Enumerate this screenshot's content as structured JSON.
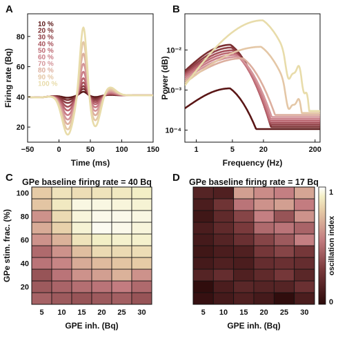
{
  "panels": {
    "a": "A",
    "b": "B",
    "c": "C",
    "d": "D"
  },
  "chart_data": [
    {
      "type": "line",
      "panel": "A",
      "xlabel": "Time (ms)",
      "ylabel": "Firing rate (Bq)",
      "xlim": [
        -50,
        150
      ],
      "ylim": [
        10,
        95
      ],
      "xticks": [
        "−50",
        "0",
        "50",
        "100",
        "150"
      ],
      "yticks": [
        "20",
        "40",
        "60",
        "80"
      ],
      "legend_placement": "top-left",
      "grid": false,
      "series": [
        {
          "name": "10 %",
          "color": "#5a1616",
          "dip": 39.5,
          "peak": 43.5
        },
        {
          "name": "20 %",
          "color": "#7a2e30",
          "dip": 38.0,
          "peak": 45.5
        },
        {
          "name": "30 %",
          "color": "#8f3f45",
          "dip": 36.0,
          "peak": 47.5
        },
        {
          "name": "40 %",
          "color": "#a65059",
          "dip": 33.5,
          "peak": 50.0
        },
        {
          "name": "50 %",
          "color": "#bb6670",
          "dip": 31.0,
          "peak": 53.0
        },
        {
          "name": "60 %",
          "color": "#c97c86",
          "dip": 28.0,
          "peak": 57.5
        },
        {
          "name": "70 %",
          "color": "#d4959a",
          "dip": 25.0,
          "peak": 63.0
        },
        {
          "name": "80 %",
          "color": "#dcae9e",
          "dip": 22.0,
          "peak": 70.0
        },
        {
          "name": "90 %",
          "color": "#e4c7a6",
          "dip": 18.5,
          "peak": 78.0
        },
        {
          "name": "100 %",
          "color": "#e8dcaa",
          "dip": 15.0,
          "peak": 88.0
        }
      ]
    },
    {
      "type": "line",
      "panel": "B",
      "xlabel": "Frequency (Hz)",
      "ylabel": "Power (dB)",
      "xscale": "log",
      "yscale": "log",
      "xlim": [
        0.6,
        250
      ],
      "ylim": [
        5e-05,
        0.08
      ],
      "xticks": [
        "1",
        "5",
        "20",
        "200"
      ],
      "yticks": [
        "10⁻⁴",
        "10⁻³",
        "10⁻²"
      ],
      "grid": false,
      "series": [
        {
          "name": "10 %",
          "peak_f": 4.5,
          "peak_p": 0.0011,
          "start_p": 0.00035
        },
        {
          "name": "20 %",
          "peak_f": 4.6,
          "peak_p": 0.0135,
          "start_p": 0.003
        },
        {
          "name": "30 %",
          "peak_f": 4.8,
          "peak_p": 0.0115,
          "start_p": 0.0027
        },
        {
          "name": "40 %",
          "peak_f": 5.0,
          "peak_p": 0.0098,
          "start_p": 0.0025
        },
        {
          "name": "50 %",
          "peak_f": 5.3,
          "peak_p": 0.0086,
          "start_p": 0.0023
        },
        {
          "name": "60 %",
          "peak_f": 5.8,
          "peak_p": 0.0076,
          "start_p": 0.0021
        },
        {
          "name": "70 %",
          "peak_f": 6.5,
          "peak_p": 0.0068,
          "start_p": 0.0019
        },
        {
          "name": "80 %",
          "peak_f": 8.0,
          "peak_p": 0.0062,
          "start_p": 0.0017
        },
        {
          "name": "90 %",
          "peak_f": 18.0,
          "peak_p": 0.012,
          "start_p": 0.0015
        },
        {
          "name": "100 %",
          "peak_f": 19.5,
          "peak_p": 0.055,
          "start_p": 0.0013
        }
      ]
    },
    {
      "type": "heatmap",
      "panel": "C",
      "title": "GPe baseline firing rate = 40 Bq",
      "xlabel": "GPE inh. (Bq)",
      "ylabel": "GPe stim. frac. (%)",
      "x": [
        5,
        10,
        15,
        20,
        25,
        30
      ],
      "y": [
        10,
        20,
        30,
        40,
        50,
        60,
        70,
        80,
        90,
        100
      ],
      "yticks": [
        "20",
        "40",
        "60",
        "80",
        "100"
      ],
      "values": [
        [
          0.45,
          0.42,
          0.4,
          0.42,
          0.44,
          0.4
        ],
        [
          0.42,
          0.46,
          0.5,
          0.52,
          0.55,
          0.48
        ],
        [
          0.4,
          0.52,
          0.62,
          0.66,
          0.72,
          0.62
        ],
        [
          0.52,
          0.58,
          0.7,
          0.75,
          0.78,
          0.8
        ],
        [
          0.48,
          0.62,
          0.76,
          0.85,
          0.85,
          0.86
        ],
        [
          0.62,
          0.72,
          0.88,
          0.92,
          0.93,
          0.93
        ],
        [
          0.7,
          0.82,
          0.94,
          0.98,
          0.97,
          0.95
        ],
        [
          0.62,
          0.85,
          0.95,
          0.97,
          0.97,
          0.96
        ],
        [
          0.78,
          0.9,
          0.96,
          0.96,
          0.95,
          0.94
        ],
        [
          0.8,
          0.88,
          0.86,
          0.88,
          0.9,
          0.92
        ]
      ]
    },
    {
      "type": "heatmap",
      "panel": "D",
      "title": "GPe baseline firing rate = 17 Bq",
      "xlabel": "GPE inh. (Bq)",
      "x": [
        5,
        10,
        15,
        20,
        25,
        30
      ],
      "y": [
        10,
        20,
        30,
        40,
        50,
        60,
        70,
        80,
        90,
        100
      ],
      "colorbar_label": "oscillation index",
      "colorbar_ticks": [
        "0",
        "1"
      ],
      "values": [
        [
          0.04,
          0.1,
          0.14,
          0.1,
          0.02,
          0.12
        ],
        [
          0.02,
          0.12,
          0.18,
          0.16,
          0.16,
          0.24
        ],
        [
          0.16,
          0.22,
          0.14,
          0.2,
          0.28,
          0.18
        ],
        [
          0.1,
          0.14,
          0.12,
          0.22,
          0.24,
          0.22
        ],
        [
          0.08,
          0.12,
          0.14,
          0.28,
          0.34,
          0.28
        ],
        [
          0.1,
          0.16,
          0.24,
          0.34,
          0.42,
          0.56
        ],
        [
          0.12,
          0.2,
          0.3,
          0.48,
          0.52,
          0.46
        ],
        [
          0.08,
          0.2,
          0.34,
          0.56,
          0.4,
          0.62
        ],
        [
          0.12,
          0.26,
          0.52,
          0.62,
          0.66,
          0.55
        ],
        [
          0.16,
          0.14,
          0.66,
          0.6,
          0.56,
          0.68
        ]
      ]
    }
  ]
}
